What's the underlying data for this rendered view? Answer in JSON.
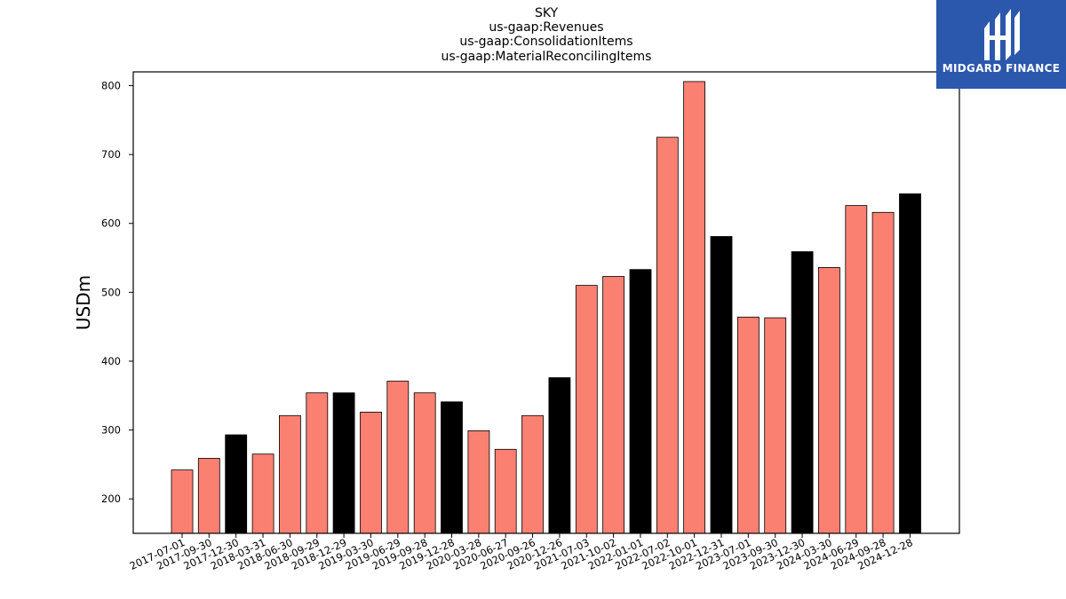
{
  "colors": {
    "regular": "#fa8072",
    "year_end": "#000000",
    "logo_bg": "#2b58ad"
  },
  "logo": {
    "text": "MIDGARD FINANCE",
    "icon": "midgard-logo-icon"
  },
  "chart_data": {
    "type": "bar",
    "title_lines": [
      "SKY",
      "us-gaap:Revenues",
      "us-gaap:ConsolidationItems",
      "us-gaap:MaterialReconcilingItems"
    ],
    "xlabel": "",
    "ylabel": "USDm",
    "ylim": [
      150,
      820
    ],
    "yticks": [
      200,
      300,
      400,
      500,
      600,
      700,
      800
    ],
    "grid": false,
    "categories": [
      "2017-07-01",
      "2017-09-30",
      "2017-12-30",
      "2018-03-31",
      "2018-06-30",
      "2018-09-29",
      "2018-12-29",
      "2019-03-30",
      "2019-06-29",
      "2019-09-28",
      "2019-12-28",
      "2020-03-28",
      "2020-06-27",
      "2020-09-26",
      "2020-12-26",
      "2021-07-03",
      "2021-10-02",
      "2022-01-01",
      "2022-07-02",
      "2022-10-01",
      "2022-12-31",
      "2023-07-01",
      "2023-09-30",
      "2023-12-30",
      "2024-03-30",
      "2024-06-29",
      "2024-09-28",
      "2024-12-28"
    ],
    "values": [
      242,
      259,
      293,
      265,
      321,
      354,
      354,
      326,
      371,
      354,
      341,
      299,
      272,
      321,
      376,
      510,
      523,
      533,
      725,
      806,
      581,
      464,
      463,
      559,
      536,
      626,
      616,
      643
    ],
    "highlight": [
      false,
      false,
      true,
      false,
      false,
      false,
      true,
      false,
      false,
      false,
      true,
      false,
      false,
      false,
      true,
      false,
      false,
      true,
      false,
      false,
      true,
      false,
      false,
      true,
      false,
      false,
      false,
      true
    ]
  }
}
